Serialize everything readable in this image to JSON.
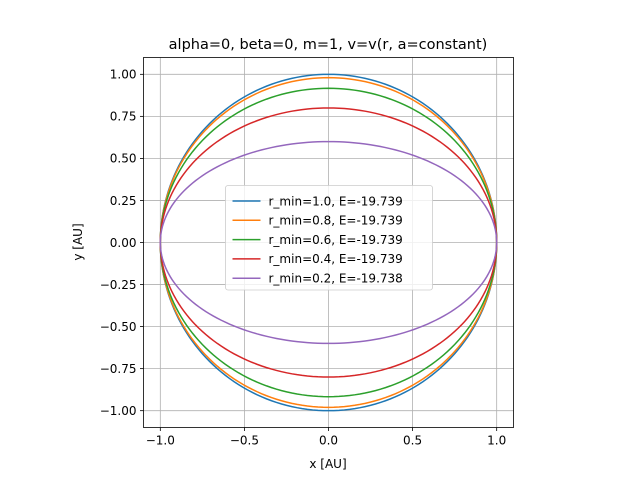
{
  "chart_data": {
    "type": "line",
    "title": "alpha=0, beta=0, m=1, v=v(r, a=constant)",
    "xlabel": "x [AU]",
    "ylabel": "y [AU]",
    "xlim": [
      -1.1,
      1.1
    ],
    "ylim": [
      -1.1,
      1.1
    ],
    "xticks": [
      -1.0,
      -0.5,
      0.0,
      0.5,
      1.0
    ],
    "xtick_labels": [
      "−1.0",
      "−0.5",
      "0.0",
      "0.5",
      "1.0"
    ],
    "yticks": [
      -1.0,
      -0.75,
      -0.5,
      -0.25,
      0.0,
      0.25,
      0.5,
      0.75,
      1.0
    ],
    "ytick_labels": [
      "−1.00",
      "−0.75",
      "−0.50",
      "−0.25",
      "0.00",
      "0.25",
      "0.50",
      "0.75",
      "1.00"
    ],
    "grid": true,
    "legend_position": "center",
    "series": [
      {
        "name": "r_min=1.0, E=-19.739",
        "color": "#1f77b4",
        "semi_major_x": 1.0,
        "semi_minor_y": 1.0
      },
      {
        "name": "r_min=0.8, E=-19.739",
        "color": "#ff7f0e",
        "semi_major_x": 1.0,
        "semi_minor_y": 0.98
      },
      {
        "name": "r_min=0.6, E=-19.739",
        "color": "#2ca02c",
        "semi_major_x": 1.0,
        "semi_minor_y": 0.917
      },
      {
        "name": "r_min=0.4, E=-19.739",
        "color": "#d62728",
        "semi_major_x": 1.0,
        "semi_minor_y": 0.8
      },
      {
        "name": "r_min=0.2, E=-19.738",
        "color": "#9467bd",
        "semi_major_x": 1.0,
        "semi_minor_y": 0.6
      }
    ]
  }
}
